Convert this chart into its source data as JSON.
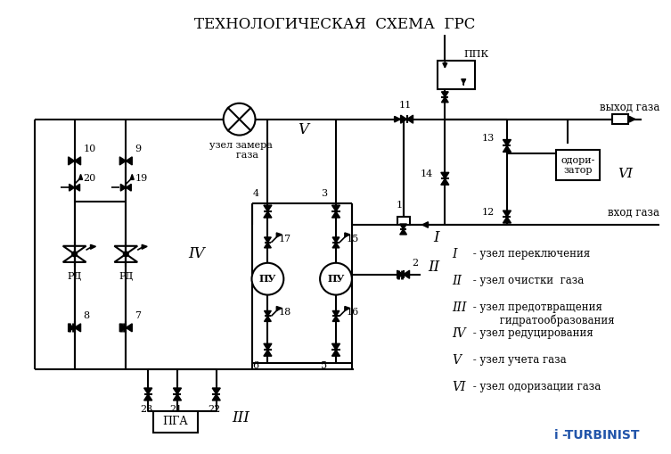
{
  "title": "ТЕХНОЛОГИЧЕСКАЯ  СХЕМА  ГРС",
  "bg_color": "#ffffff",
  "lc": "black",
  "lw": 1.5,
  "legend": [
    [
      "I",
      " - узел переключения"
    ],
    [
      "II",
      " - узел очистки  газа"
    ],
    [
      "III",
      " - узел предотвращения\n         гидратообразования"
    ],
    [
      "IV",
      " - узел редуцирования"
    ],
    [
      "V",
      " - узел учета газа"
    ],
    [
      "VI",
      " - узел одоризации газа"
    ]
  ]
}
